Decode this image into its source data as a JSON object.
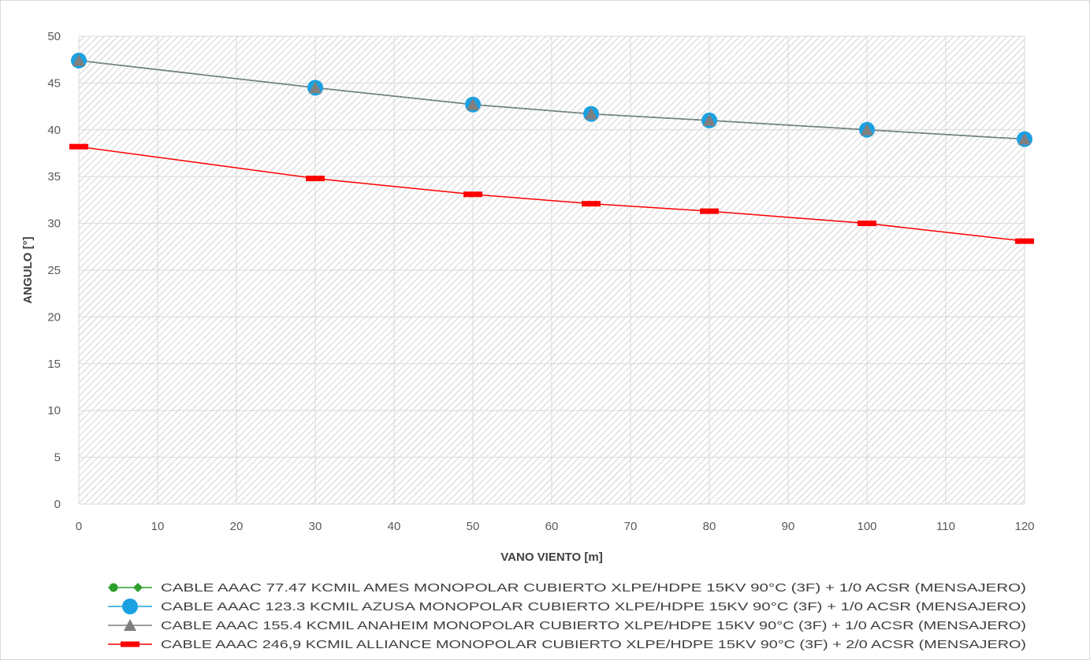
{
  "chart_data": {
    "type": "line",
    "title": "",
    "xlabel": "VANO VIENTO [m]",
    "ylabel": "ANGULO [°]",
    "xlim": [
      0,
      120
    ],
    "ylim": [
      0,
      50
    ],
    "x_ticks": [
      0,
      10,
      20,
      30,
      40,
      50,
      60,
      70,
      80,
      90,
      100,
      110,
      120
    ],
    "y_ticks": [
      0,
      5,
      10,
      15,
      20,
      25,
      30,
      35,
      40,
      45,
      50
    ],
    "x": [
      0,
      30,
      50,
      65,
      80,
      100,
      120
    ],
    "grid": true,
    "plot_background": "diagonal-hatch",
    "legend_position": "bottom",
    "series": [
      {
        "name": "CABLE AAAC 77.47 KCMIL AMES MONOPOLAR CUBIERTO XLPE/HDPE 15KV 90°C (3F) + 1/0 ACSR  (MENSAJERO)",
        "values": [
          47.4,
          44.5,
          42.7,
          41.7,
          41.0,
          40.0,
          39.0
        ],
        "color": "#2ca02c",
        "marker": "diamond"
      },
      {
        "name": "CABLE AAAC 123.3 KCMIL AZUSA MONOPOLAR CUBIERTO XLPE/HDPE 15KV 90°C (3F) + 1/0 ACSR  (MENSAJERO)",
        "values": [
          47.4,
          44.5,
          42.7,
          41.7,
          41.0,
          40.0,
          39.0
        ],
        "color": "#1ba1e2",
        "marker": "circle"
      },
      {
        "name": "CABLE AAAC 155.4 KCMIL ANAHEIM MONOPOLAR CUBIERTO XLPE/HDPE 15KV 90°C (3F) + 1/0 ACSR  (MENSAJERO)",
        "values": [
          47.4,
          44.5,
          42.7,
          41.7,
          41.0,
          40.0,
          39.0
        ],
        "color": "#7f7f7f",
        "marker": "triangle"
      },
      {
        "name": "CABLE AAAC 246,9 KCMIL ALLIANCE MONOPOLAR CUBIERTO XLPE/HDPE 15KV 90°C (3F) + 2/0 ACSR  (MENSAJERO)",
        "values": [
          38.2,
          34.8,
          33.1,
          32.1,
          31.3,
          30.0,
          28.1
        ],
        "color": "#ff0000",
        "marker": "dash"
      }
    ]
  }
}
